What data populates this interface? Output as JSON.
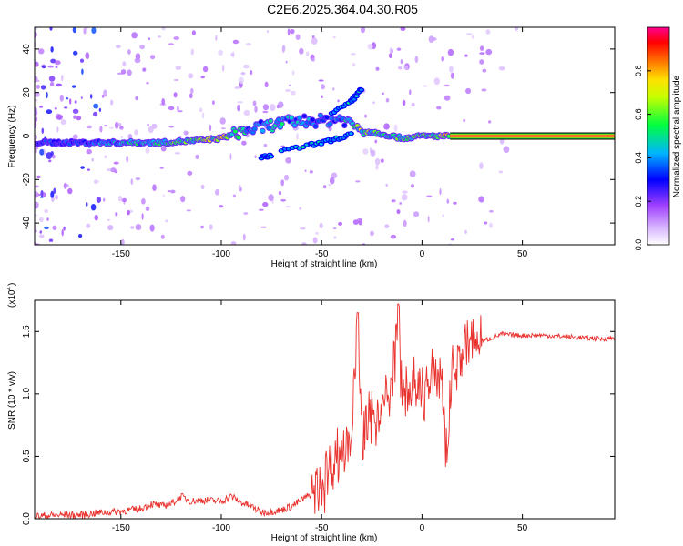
{
  "title": "C2E6.2025.364.04.30.R05",
  "chart_data": [
    {
      "type": "heatmap",
      "xlabel": "Height of straight line (km)",
      "ylabel": "Frequency (Hz)",
      "xlim": [
        -193,
        96
      ],
      "ylim": [
        -50,
        50
      ],
      "xticks": [
        -150,
        -100,
        -50,
        0,
        50
      ],
      "yticks": [
        -40,
        -20,
        0,
        20,
        40
      ],
      "xtick_labels": [
        "-150",
        "-100",
        "-50",
        "0",
        "50"
      ],
      "ytick_labels": [
        "-40",
        "-20",
        "0",
        "20",
        "40"
      ],
      "colorbar": {
        "label": "Normalized spectral amplitude",
        "range": [
          0,
          1
        ],
        "ticks": [
          0.0,
          0.2,
          0.4,
          0.6,
          0.8
        ],
        "tick_labels": [
          "0.0",
          "0.2",
          "0.4",
          "0.6",
          "0.8"
        ],
        "colors": [
          "#ffffff",
          "#b060ff",
          "#0000ff",
          "#00c8ff",
          "#00ff60",
          "#c8ff00",
          "#ffff00",
          "#ff8000",
          "#ff0000",
          "#ff0080"
        ]
      },
      "main_trace": [
        {
          "x": -190,
          "y": -3,
          "a": 0.3
        },
        {
          "x": -170,
          "y": -3,
          "a": 0.35
        },
        {
          "x": -150,
          "y": -3,
          "a": 0.45
        },
        {
          "x": -130,
          "y": -3,
          "a": 0.5
        },
        {
          "x": -110,
          "y": -2,
          "a": 0.6
        },
        {
          "x": -100,
          "y": -1,
          "a": 0.7
        },
        {
          "x": -90,
          "y": 2,
          "a": 0.45
        },
        {
          "x": -80,
          "y": 4,
          "a": 0.4
        },
        {
          "x": -70,
          "y": 6,
          "a": 0.45
        },
        {
          "x": -60,
          "y": 7,
          "a": 0.4
        },
        {
          "x": -50,
          "y": 7,
          "a": 0.4
        },
        {
          "x": -40,
          "y": 8,
          "a": 0.4
        },
        {
          "x": -30,
          "y": 3,
          "a": 0.6
        },
        {
          "x": -20,
          "y": 1,
          "a": 0.5
        },
        {
          "x": -10,
          "y": -1,
          "a": 0.55
        },
        {
          "x": 0,
          "y": 0,
          "a": 0.6
        },
        {
          "x": 10,
          "y": 0,
          "a": 0.6
        },
        {
          "x": 15,
          "y": 0,
          "a": 0.9
        },
        {
          "x": 96,
          "y": 0,
          "a": 0.95
        }
      ],
      "side_branches": [
        [
          {
            "x": -80,
            "y": -10
          },
          {
            "x": -75,
            "y": -9
          }
        ],
        [
          {
            "x": -70,
            "y": -7
          },
          {
            "x": -55,
            "y": -4
          },
          {
            "x": -45,
            "y": -2
          },
          {
            "x": -35,
            "y": 1
          }
        ],
        [
          {
            "x": -45,
            "y": 10
          },
          {
            "x": -35,
            "y": 16
          },
          {
            "x": -30,
            "y": 22
          }
        ]
      ]
    },
    {
      "type": "line",
      "xlabel": "Height of straight line (km)",
      "ylabel": "SNR (10 * v/v)",
      "scale_label": "(x10",
      "scale_exp": "4",
      "scale_close": ")",
      "xlim": [
        -193,
        96
      ],
      "ylim": [
        0,
        1.75
      ],
      "xticks": [
        -150,
        -100,
        -50,
        0,
        50
      ],
      "yticks": [
        0.0,
        0.5,
        1.0,
        1.5
      ],
      "xtick_labels": [
        "-150",
        "-100",
        "-50",
        "0",
        "50"
      ],
      "ytick_labels": [
        "0.0",
        "0.5",
        "1.0",
        "1.5"
      ],
      "color": "#e8302c",
      "series": [
        {
          "x": [
            -193,
            -180,
            -170,
            -160,
            -150,
            -140,
            -135,
            -130,
            -125,
            -120,
            -115,
            -110,
            -100,
            -95,
            -90,
            -85,
            -80,
            -75,
            -70,
            -65,
            -60,
            -55,
            -50,
            -45,
            -40,
            -35,
            -32,
            -30,
            -25,
            -20,
            -15,
            -12,
            -10,
            -5,
            0,
            5,
            10,
            12,
            15,
            20,
            25,
            30,
            35,
            40,
            45,
            50,
            60,
            70,
            80,
            90,
            96
          ],
          "values": [
            0.02,
            0.03,
            0.03,
            0.05,
            0.06,
            0.08,
            0.12,
            0.1,
            0.12,
            0.18,
            0.14,
            0.15,
            0.14,
            0.18,
            0.13,
            0.1,
            0.05,
            0.06,
            0.07,
            0.1,
            0.15,
            0.2,
            0.3,
            0.45,
            0.55,
            0.7,
            1.65,
            0.6,
            0.8,
            0.9,
            1.0,
            1.72,
            0.95,
            1.05,
            1.0,
            1.1,
            1.15,
            0.5,
            1.2,
            1.3,
            1.4,
            1.42,
            1.45,
            1.48,
            1.47,
            1.47,
            1.47,
            1.46,
            1.45,
            1.44,
            1.45
          ]
        }
      ]
    }
  ]
}
